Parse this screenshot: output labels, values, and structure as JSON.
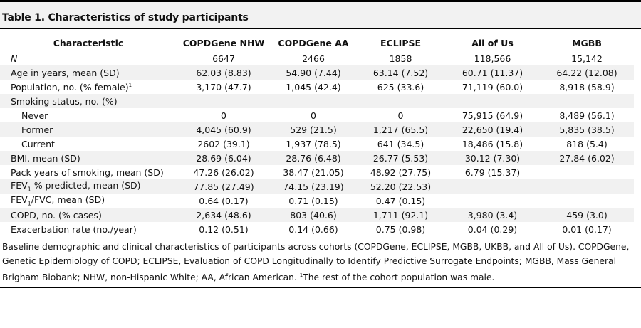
{
  "title": "Table 1. Characteristics of study participants",
  "table": {
    "headers": [
      "Characteristic",
      "COPDGene NHW",
      "COPDGene AA",
      "ECLIPSE",
      "All of Us",
      "MGBB"
    ],
    "rows": [
      {
        "label": "N",
        "values": [
          "6647",
          "2466",
          "1858",
          "118,566",
          "15,142"
        ]
      },
      {
        "label": "Age in years, mean (SD)",
        "values": [
          "62.03 (8.83)",
          "54.90 (7.44)",
          "63.14 (7.52)",
          "60.71 (11.37)",
          "64.22 (12.08)"
        ]
      },
      {
        "label": "Population, no. (% female)",
        "sup": "1",
        "values": [
          "3,170 (47.7)",
          "1,045 (42.4)",
          "625 (33.6)",
          "71,119 (60.0)",
          "8,918 (58.9)"
        ]
      },
      {
        "label": "Smoking status, no. (%)",
        "values": [
          "",
          "",
          "",
          "",
          ""
        ]
      },
      {
        "label": "Never",
        "values": [
          "0",
          "0",
          "0",
          "75,915 (64.9)",
          "8,489 (56.1)"
        ]
      },
      {
        "label": "Former",
        "values": [
          "4,045 (60.9)",
          "529 (21.5)",
          "1,217 (65.5)",
          "22,650 (19.4)",
          "5,835 (38.5)"
        ]
      },
      {
        "label": "Current",
        "values": [
          "2602 (39.1)",
          "1,937 (78.5)",
          "641 (34.5)",
          "18,486 (15.8)",
          "818 (5.4)"
        ]
      },
      {
        "label": "BMI, mean (SD)",
        "values": [
          "28.69 (6.04)",
          "28.76 (6.48)",
          "26.77 (5.53)",
          "30.12 (7.30)",
          "27.84 (6.02)"
        ]
      },
      {
        "label": "Pack years of smoking, mean (SD)",
        "values": [
          "47.26 (26.02)",
          "38.47 (21.05)",
          "48.92 (27.75)",
          "6.79 (15.37)",
          ""
        ]
      },
      {
        "label_pre": "FEV",
        "label_sub": "1",
        "label_post": " % predicted, mean (SD)",
        "values": [
          "77.85 (27.49)",
          "74.15 (23.19)",
          "52.20 (22.53)",
          "",
          ""
        ]
      },
      {
        "label_pre": "FEV",
        "label_sub": "1",
        "label_post": "/FVC, mean (SD)",
        "values": [
          "0.64 (0.17)",
          "0.71 (0.15)",
          "0.47 (0.15)",
          "",
          ""
        ]
      },
      {
        "label": "COPD, no. (% cases)",
        "values": [
          "2,634 (48.6)",
          "803 (40.6)",
          "1,711 (92.1)",
          "3,980 (3.4)",
          "459 (3.0)"
        ]
      },
      {
        "label": "Exacerbation rate (no./year)",
        "values": [
          "0.12 (0.51)",
          "0.14 (0.66)",
          "0.75 (0.98)",
          "0.04 (0.29)",
          "0.01 (0.17)"
        ]
      }
    ]
  },
  "footnote": {
    "text": "Baseline demographic and clinical characteristics of participants across cohorts (COPDGene, ECLIPSE, MGBB, UKBB, and All of Us). COPDGene, Genetic Epidemiology of COPD; ECLIPSE, Evaluation of COPD Longitudinally to Identify Predictive Surrogate Endpoints; MGBB, Mass General Brigham Biobank; NHW, non-Hispanic White; AA, African American. ",
    "marker": "1",
    "note": "The rest of the cohort population was male."
  }
}
